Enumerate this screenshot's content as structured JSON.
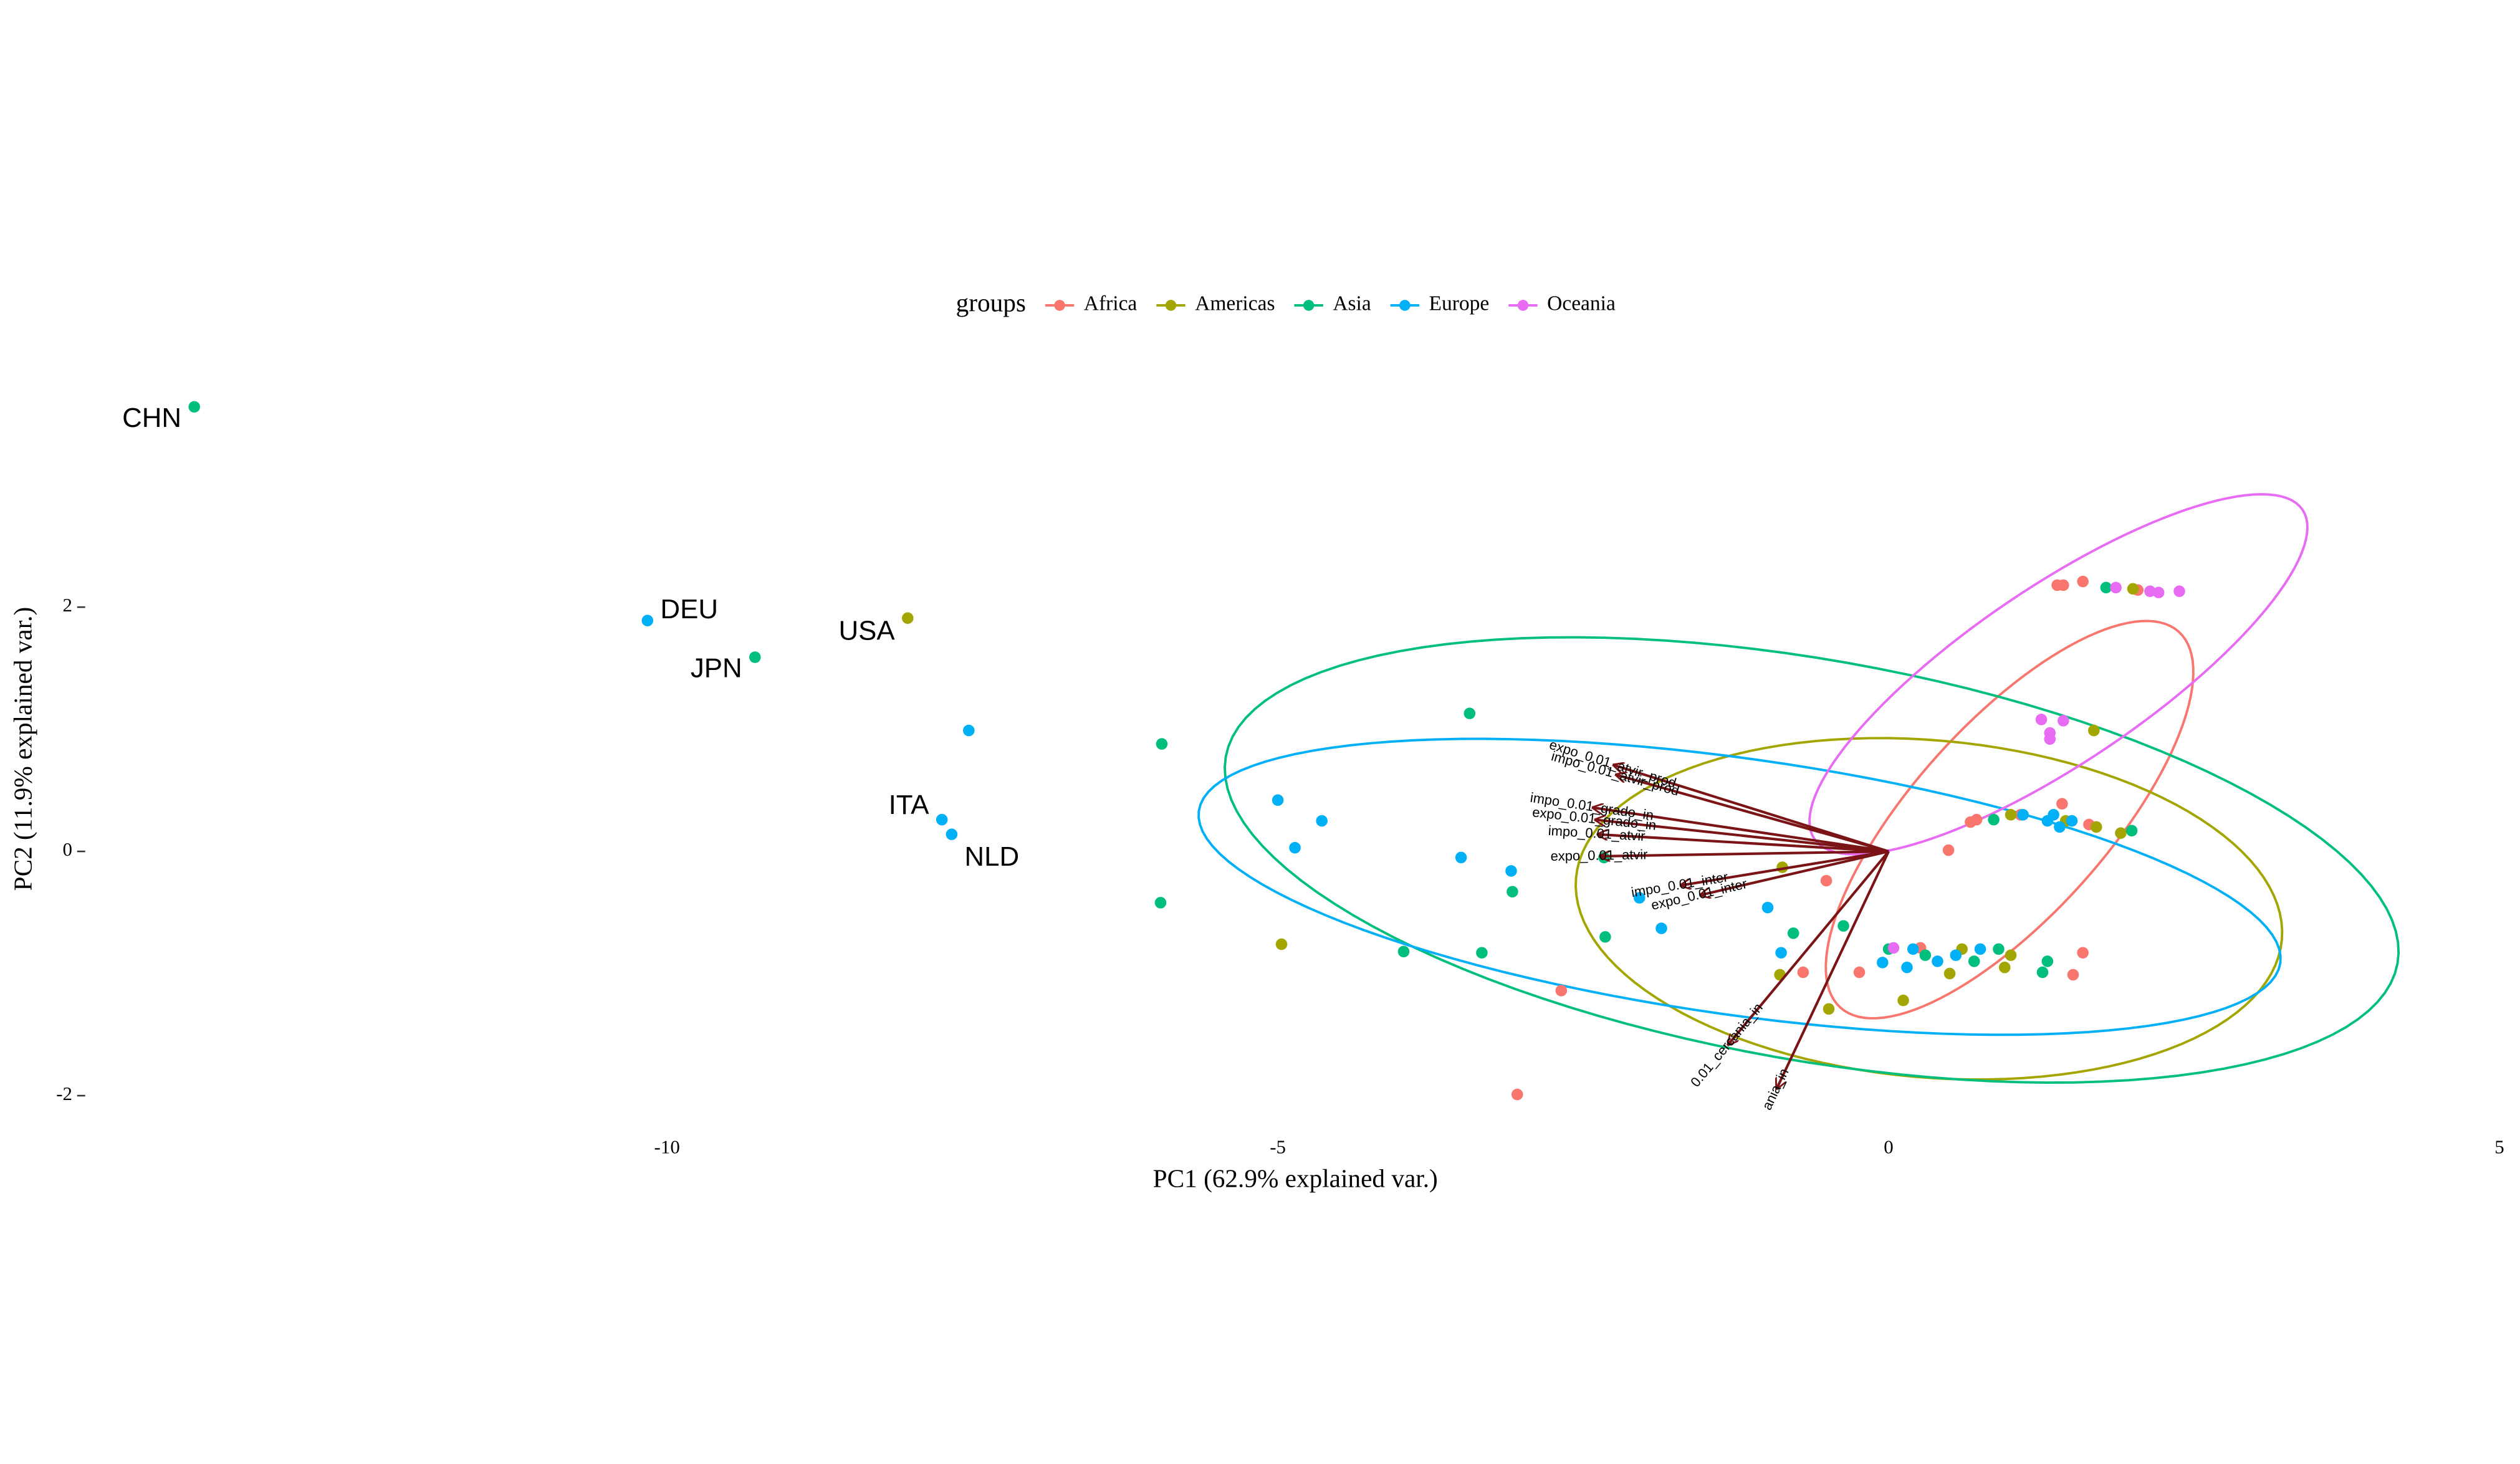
{
  "chart_data": {
    "type": "biplot",
    "x_label": "PC1 (62.9% explained var.)",
    "y_label": "PC2 (11.9% explained var.)",
    "legend_title": "groups",
    "xlim": [
      -14.5,
      5.05
    ],
    "ylim": [
      -2.2,
      3.8
    ],
    "xticks": [
      -10,
      -5,
      0,
      5
    ],
    "yticks": [
      -2,
      0,
      2
    ],
    "series": [
      {
        "name": "Africa",
        "color": "#F8766D",
        "x": [
          -3.04,
          -2.68,
          -0.51,
          -0.24,
          0.49,
          0.67,
          1.08,
          1.42,
          1.43,
          1.59,
          1.38,
          2.04,
          1.59,
          1.51,
          -0.7,
          0.26,
          1.64,
          0.72
        ],
        "y": [
          -1.99,
          -1.14,
          -0.24,
          -0.99,
          0.01,
          0.24,
          0.3,
          0.39,
          2.18,
          2.21,
          2.18,
          2.14,
          -0.83,
          -1.01,
          -0.99,
          -0.79,
          0.22,
          0.26
        ],
        "ellipse": {
          "cx": 0.99,
          "cy": 0.26,
          "rx": 2.07,
          "ry": 0.79,
          "angle": 48
        }
      },
      {
        "name": "Americas",
        "color": "#A3A500",
        "x": [
          -8.03,
          -4.97,
          -0.87,
          1.68,
          -0.89,
          -0.49,
          0.12,
          0.6,
          1.0,
          0.95,
          1.7,
          1.45,
          1.9,
          2.0,
          1.0,
          0.5
        ],
        "y": [
          1.91,
          -0.76,
          -0.13,
          0.99,
          -1.01,
          -1.29,
          -1.22,
          -0.8,
          -0.85,
          -0.95,
          0.2,
          0.25,
          0.15,
          2.15,
          0.3,
          -1.0
        ],
        "labels": [
          "USA",
          null,
          null,
          null,
          null,
          null,
          null,
          null,
          null,
          null,
          null,
          null,
          null,
          null,
          null,
          null
        ],
        "ellipse": {
          "cx": 0.33,
          "cy": -0.47,
          "rx": 2.9,
          "ry": 1.38,
          "angle": -5
        }
      },
      {
        "name": "Asia",
        "color": "#00BF7D",
        "x": [
          -13.87,
          -9.28,
          -5.95,
          -5.96,
          -3.43,
          -3.08,
          -3.97,
          -3.33,
          -2.33,
          -2.32,
          -0.37,
          -0.78,
          0.0,
          0.3,
          0.7,
          0.9,
          1.3,
          1.78,
          1.99,
          0.86,
          1.26
        ],
        "y": [
          3.64,
          1.59,
          0.88,
          -0.42,
          1.13,
          -0.33,
          -0.82,
          -0.83,
          -0.05,
          -0.7,
          -0.61,
          -0.67,
          -0.8,
          -0.85,
          -0.9,
          -0.8,
          -0.9,
          2.16,
          0.17,
          0.26,
          -0.99
        ],
        "labels": [
          "CHN",
          "JPN",
          null,
          null,
          null,
          null,
          null,
          null,
          null,
          null,
          null,
          null,
          null,
          null,
          null,
          null,
          null,
          null,
          null,
          null,
          null
        ],
        "ellipse": {
          "cx": -0.63,
          "cy": -0.07,
          "rx": 4.87,
          "ry": 1.64,
          "angle": -10
        }
      },
      {
        "name": "Europe",
        "color": "#00B0F6",
        "x": [
          -10.16,
          -7.75,
          -7.67,
          -7.53,
          -5.0,
          -4.64,
          -4.86,
          -3.5,
          -3.09,
          -1.86,
          -2.04,
          -0.99,
          -0.88,
          -0.05,
          0.2,
          0.4,
          0.55,
          0.75,
          0.15,
          1.3,
          1.35,
          1.4,
          1.5,
          1.1
        ],
        "y": [
          1.89,
          0.26,
          0.14,
          0.99,
          0.42,
          0.25,
          0.03,
          -0.05,
          -0.16,
          -0.63,
          -0.38,
          -0.46,
          -0.83,
          -0.91,
          -0.8,
          -0.9,
          -0.85,
          -0.8,
          -0.95,
          0.25,
          0.3,
          0.2,
          0.25,
          0.3
        ],
        "labels": [
          "DEU",
          "ITA",
          "NLD",
          null,
          null,
          null,
          null,
          null,
          null,
          null,
          null,
          null,
          null,
          null,
          null,
          null,
          null,
          null,
          null,
          null,
          null,
          null,
          null,
          null
        ],
        "ellipse": {
          "cx": -1.22,
          "cy": -0.29,
          "rx": 4.47,
          "ry": 1.05,
          "angle": -8
        }
      },
      {
        "name": "Oceania",
        "color": "#E76BF3",
        "x": [
          1.25,
          1.43,
          1.32,
          1.32,
          1.86,
          2.14,
          2.38,
          2.21,
          0.04
        ],
        "y": [
          1.08,
          1.07,
          0.97,
          0.92,
          2.16,
          2.13,
          2.13,
          2.12,
          -0.79
        ],
        "ellipse": {
          "cx": 1.39,
          "cy": 1.45,
          "rx": 2.41,
          "ry": 0.72,
          "angle": 34
        }
      }
    ],
    "loadings": {
      "color": "#7B1416",
      "names": [
        "expo_0.01_atvir_prod",
        "impo_0.01_atvir_prod",
        "impo_0.01_grado_in",
        "expo_0.01_grado_in",
        "impo_0.01_atvir",
        "expo_0.01_atvir",
        "impo_0.01_inter",
        "expo_0.01_inter",
        "0.01_cercania_in",
        "ania_in"
      ],
      "x": [
        -2.26,
        -2.24,
        -2.43,
        -2.41,
        -2.39,
        -2.37,
        -1.71,
        -1.55,
        -1.32,
        -0.92
      ],
      "y": [
        0.71,
        0.63,
        0.36,
        0.26,
        0.14,
        -0.04,
        -0.28,
        -0.36,
        -1.59,
        -1.95
      ]
    }
  }
}
